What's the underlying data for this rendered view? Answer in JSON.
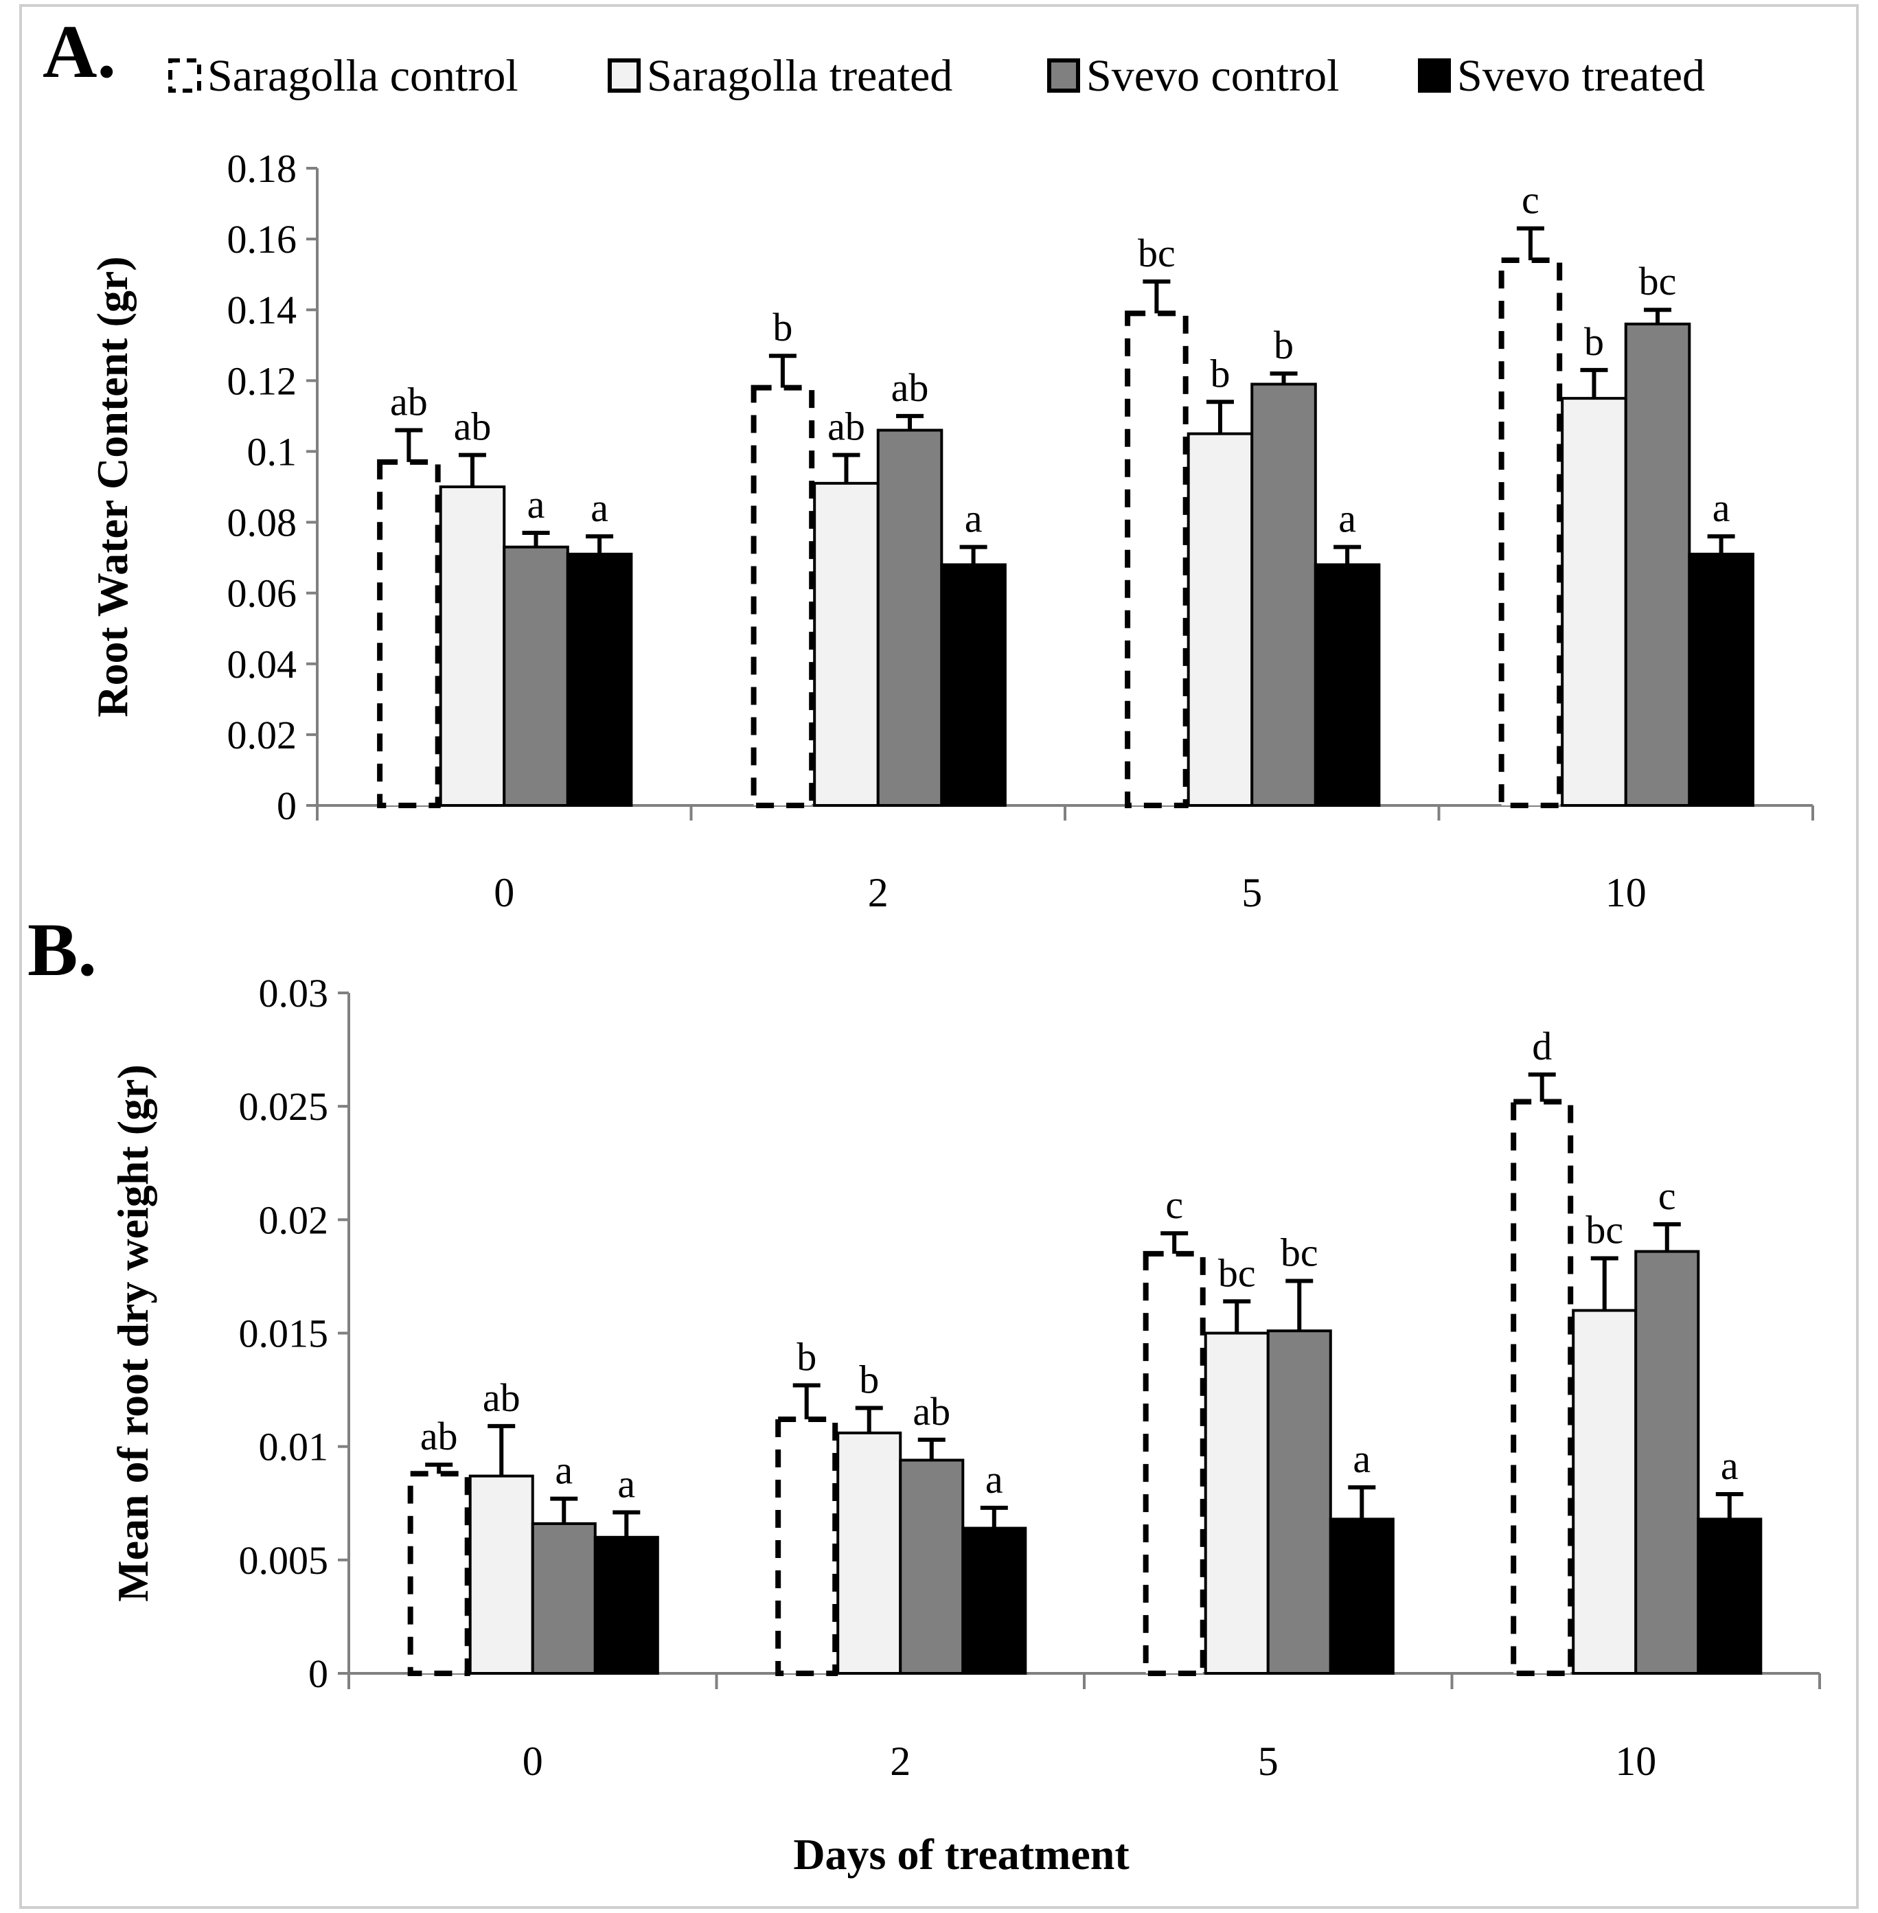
{
  "legend": {
    "items": [
      {
        "label": "Saragolla control",
        "fill": "#ffffff",
        "stroke": "#000000",
        "dashed": true
      },
      {
        "label": "Saragolla treated",
        "fill": "#f2f2f2",
        "stroke": "#000000",
        "dashed": false
      },
      {
        "label": "Svevo control",
        "fill": "#808080",
        "stroke": "#000000",
        "dashed": false
      },
      {
        "label": "Svevo treated",
        "fill": "#000000",
        "stroke": "#000000",
        "dashed": false
      }
    ]
  },
  "xlabel": "Days of treatment",
  "chart_data": [
    {
      "panel": "A.",
      "type": "bar",
      "ylabel": "Root Water Content (gr)",
      "ylim": [
        0,
        0.18
      ],
      "yticks": [
        "0",
        "0.02",
        "0.04",
        "0.06",
        "0.08",
        "0.1",
        "0.12",
        "0.14",
        "0.16",
        "0.18"
      ],
      "categories": [
        "0",
        "2",
        "5",
        "10"
      ],
      "series": [
        {
          "name": "Saragolla control",
          "values": [
            0.097,
            0.118,
            0.139,
            0.154
          ],
          "errors": [
            0.009,
            0.009,
            0.009,
            0.009
          ],
          "labels": [
            "ab",
            "b",
            "bc",
            "c"
          ]
        },
        {
          "name": "Saragolla treated",
          "values": [
            0.09,
            0.091,
            0.105,
            0.115
          ],
          "errors": [
            0.009,
            0.008,
            0.009,
            0.008
          ],
          "labels": [
            "ab",
            "ab",
            "b",
            "b"
          ]
        },
        {
          "name": "Svevo control",
          "values": [
            0.073,
            0.106,
            0.119,
            0.136
          ],
          "errors": [
            0.004,
            0.004,
            0.003,
            0.004
          ],
          "labels": [
            "a",
            "ab",
            "b",
            "bc"
          ]
        },
        {
          "name": "Svevo treated",
          "values": [
            0.071,
            0.068,
            0.068,
            0.071
          ],
          "errors": [
            0.005,
            0.005,
            0.005,
            0.005
          ],
          "labels": [
            "a",
            "a",
            "a",
            "a"
          ]
        }
      ]
    },
    {
      "panel": "B.",
      "type": "bar",
      "ylabel": "Mean of root dry weight (gr)",
      "ylim": [
        0,
        0.03
      ],
      "yticks": [
        "0",
        "0.005",
        "0.01",
        "0.015",
        "0.02",
        "0.025",
        "0.03"
      ],
      "categories": [
        "0",
        "2",
        "5",
        "10"
      ],
      "series": [
        {
          "name": "Saragolla control",
          "values": [
            0.0088,
            0.0112,
            0.0185,
            0.0252
          ],
          "errors": [
            0.0004,
            0.0015,
            0.0009,
            0.0012
          ],
          "labels": [
            "ab",
            "b",
            "c",
            "d"
          ]
        },
        {
          "name": "Saragolla treated",
          "values": [
            0.0087,
            0.0106,
            0.015,
            0.016
          ],
          "errors": [
            0.0022,
            0.0011,
            0.0014,
            0.0023
          ],
          "labels": [
            "ab",
            "b",
            "bc",
            "bc"
          ]
        },
        {
          "name": "Svevo control",
          "values": [
            0.0066,
            0.0094,
            0.0151,
            0.0186
          ],
          "errors": [
            0.0011,
            0.0009,
            0.0022,
            0.0012
          ],
          "labels": [
            "a",
            "ab",
            "bc",
            "c"
          ]
        },
        {
          "name": "Svevo treated",
          "values": [
            0.006,
            0.0064,
            0.0068,
            0.0068
          ],
          "errors": [
            0.0011,
            0.0009,
            0.0014,
            0.0011
          ],
          "labels": [
            "a",
            "a",
            "a",
            "a"
          ]
        }
      ]
    }
  ]
}
